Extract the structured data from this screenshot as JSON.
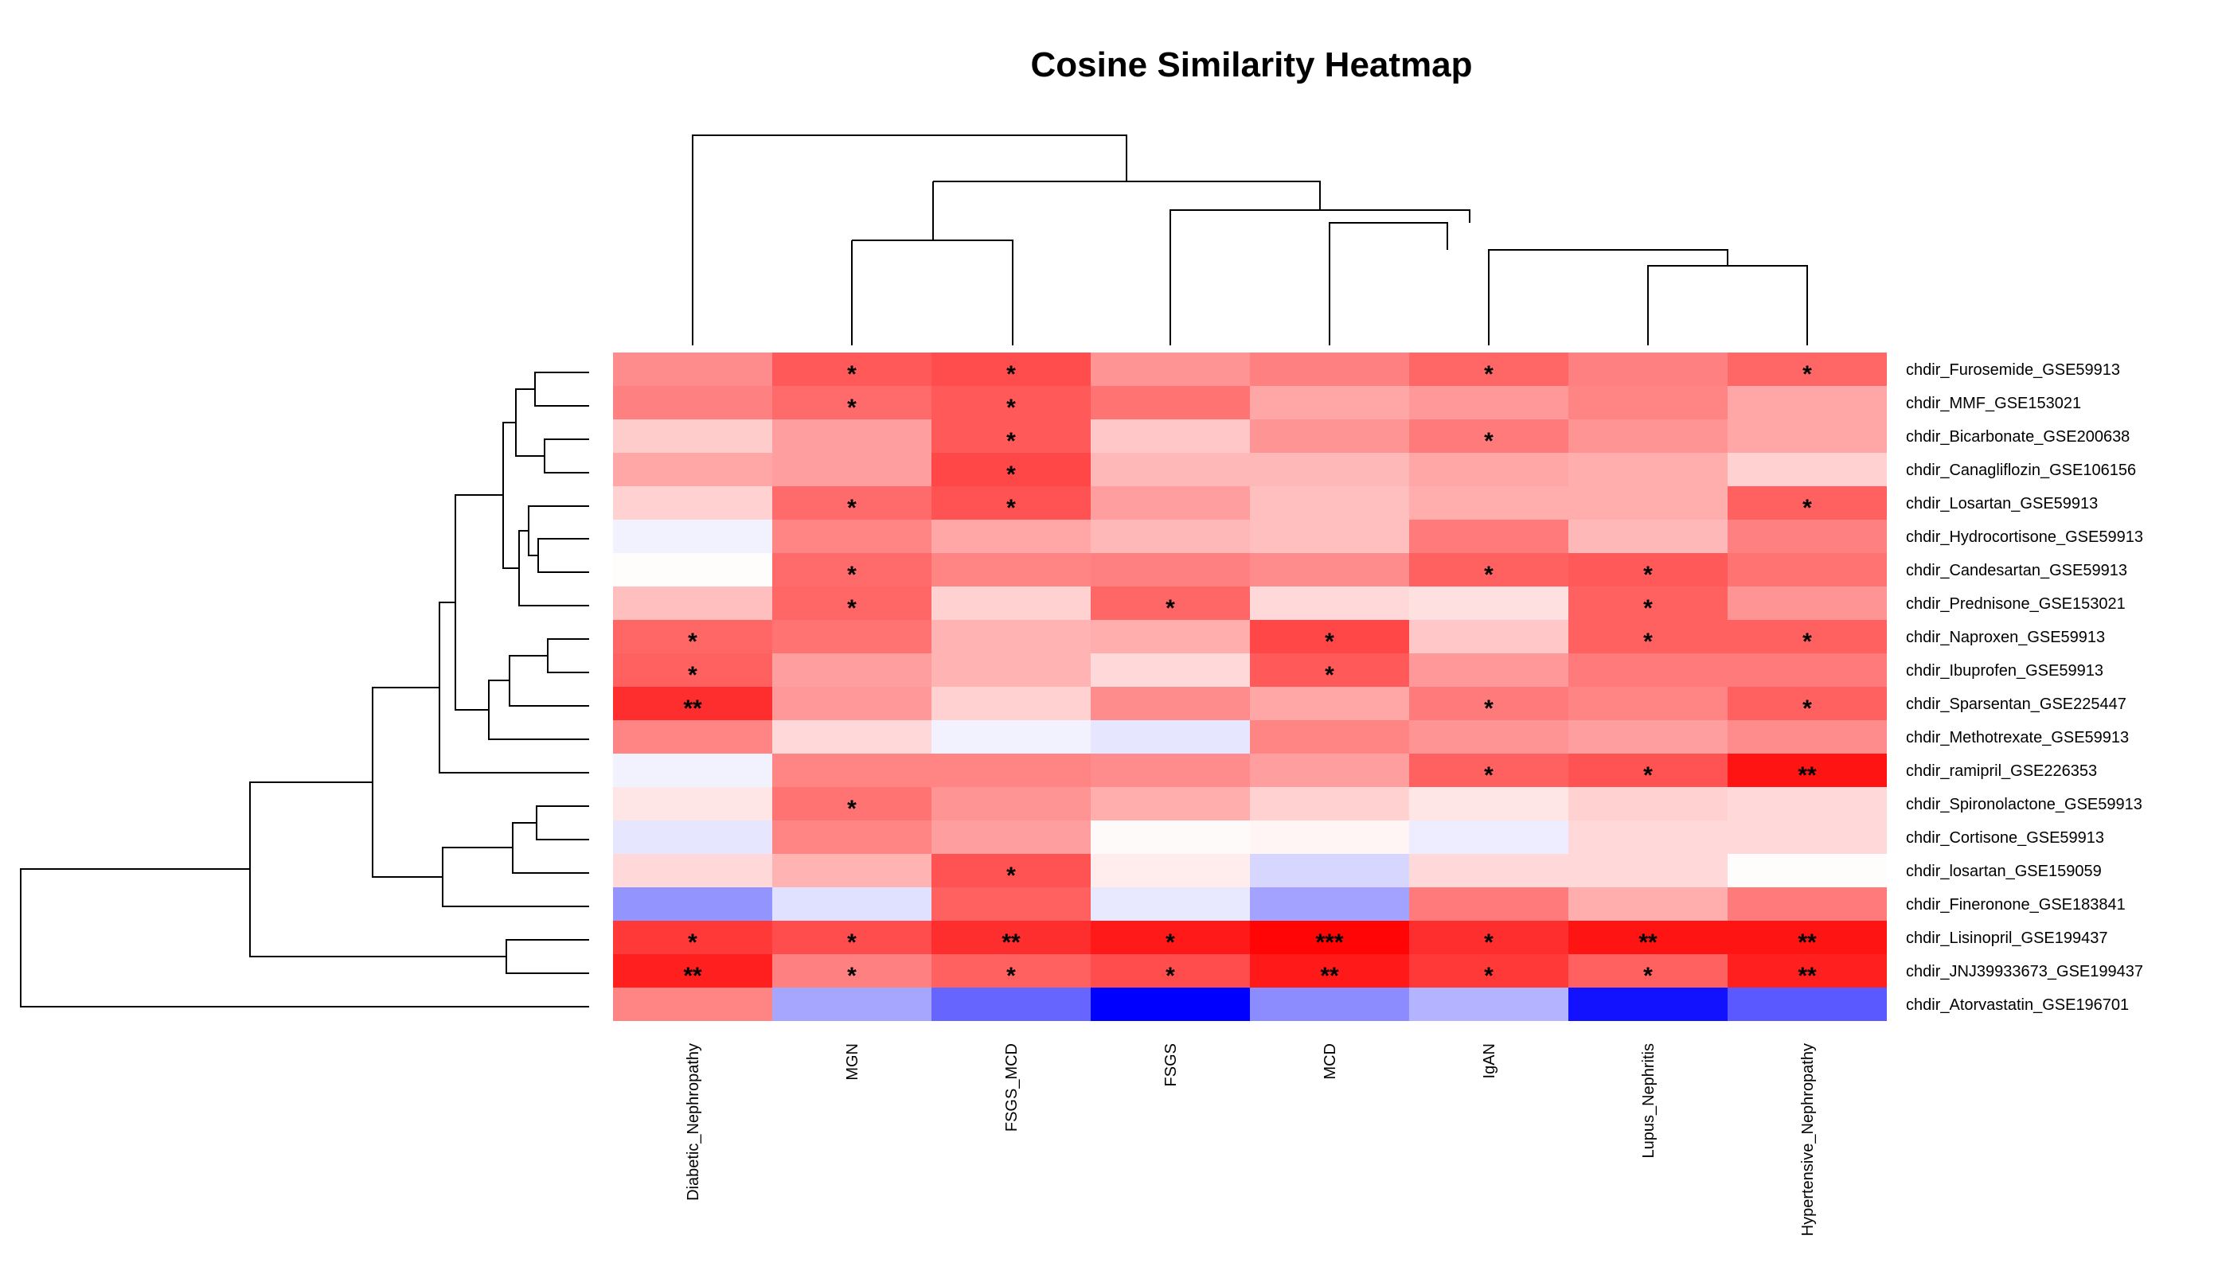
{
  "chart_data": {
    "type": "heatmap",
    "title": "Cosine Similarity Heatmap",
    "rows": [
      "chdir_Furosemide_GSE59913",
      "chdir_MMF_GSE153021",
      "chdir_Bicarbonate_GSE200638",
      "chdir_Canagliflozin_GSE106156",
      "chdir_Losartan_GSE59913",
      "chdir_Hydrocortisone_GSE59913",
      "chdir_Candesartan_GSE59913",
      "chdir_Prednisone_GSE153021",
      "chdir_Naproxen_GSE59913",
      "chdir_Ibuprofen_GSE59913",
      "chdir_Sparsentan_GSE225447",
      "chdir_Methotrexate_GSE59913",
      "chdir_ramipril_GSE226353",
      "chdir_Spironolactone_GSE59913",
      "chdir_Cortisone_GSE59913",
      "chdir_losartan_GSE159059",
      "chdir_Fineronone_GSE183841",
      "chdir_Lisinopril_GSE199437",
      "chdir_JNJ39933673_GSE199437",
      "chdir_Atorvastatin_GSE196701"
    ],
    "columns": [
      "Diabetic_Nephropathy",
      "MGN",
      "FSGS_MCD",
      "FSGS",
      "MCD",
      "IgAN",
      "Lupus_Nephritis",
      "Hypertensive_Nephropathy"
    ],
    "values": [
      [
        0.45,
        0.65,
        0.7,
        0.42,
        0.5,
        0.6,
        0.5,
        0.6
      ],
      [
        0.5,
        0.58,
        0.65,
        0.55,
        0.35,
        0.4,
        0.48,
        0.35
      ],
      [
        0.2,
        0.38,
        0.65,
        0.22,
        0.42,
        0.52,
        0.42,
        0.35
      ],
      [
        0.35,
        0.38,
        0.72,
        0.28,
        0.28,
        0.35,
        0.32,
        0.18
      ],
      [
        0.18,
        0.58,
        0.68,
        0.38,
        0.25,
        0.32,
        0.32,
        0.62
      ],
      [
        -0.05,
        0.48,
        0.35,
        0.28,
        0.25,
        0.52,
        0.28,
        0.5
      ],
      [
        0.01,
        0.58,
        0.48,
        0.5,
        0.45,
        0.62,
        0.65,
        0.55
      ],
      [
        0.25,
        0.6,
        0.18,
        0.6,
        0.15,
        0.12,
        0.62,
        0.42
      ],
      [
        0.6,
        0.55,
        0.3,
        0.32,
        0.72,
        0.22,
        0.62,
        0.62
      ],
      [
        0.62,
        0.38,
        0.3,
        0.15,
        0.65,
        0.4,
        0.52,
        0.52
      ],
      [
        0.82,
        0.4,
        0.18,
        0.45,
        0.35,
        0.52,
        0.48,
        0.62
      ],
      [
        0.48,
        0.15,
        -0.05,
        -0.1,
        0.48,
        0.42,
        0.38,
        0.45
      ],
      [
        -0.05,
        0.48,
        0.48,
        0.45,
        0.38,
        0.62,
        0.68,
        0.92
      ],
      [
        0.1,
        0.55,
        0.42,
        0.32,
        0.18,
        0.1,
        0.18,
        0.15
      ],
      [
        -0.1,
        0.48,
        0.38,
        0.02,
        0.04,
        -0.07,
        0.15,
        0.15
      ],
      [
        0.15,
        0.3,
        0.68,
        0.07,
        -0.16,
        0.15,
        0.15,
        0.01
      ],
      [
        -0.42,
        -0.12,
        0.62,
        -0.09,
        -0.36,
        0.52,
        0.32,
        0.52
      ],
      [
        0.78,
        0.7,
        0.82,
        0.9,
        0.98,
        0.82,
        0.92,
        0.92
      ],
      [
        0.88,
        0.5,
        0.62,
        0.7,
        0.9,
        0.78,
        0.62,
        0.88
      ],
      [
        0.48,
        -0.35,
        -0.6,
        -1.0,
        -0.45,
        -0.3,
        -0.93,
        -0.65
      ]
    ],
    "significance": [
      [
        "",
        "*",
        "*",
        "",
        "",
        "*",
        "",
        "*"
      ],
      [
        "",
        "*",
        "*",
        "",
        "",
        "",
        "",
        ""
      ],
      [
        "",
        "",
        "*",
        "",
        "",
        "*",
        "",
        ""
      ],
      [
        "",
        "",
        "*",
        "",
        "",
        "",
        "",
        ""
      ],
      [
        "",
        "*",
        "*",
        "",
        "",
        "",
        "",
        "*"
      ],
      [
        "",
        "",
        "",
        "",
        "",
        "",
        "",
        ""
      ],
      [
        "",
        "*",
        "",
        "",
        "",
        "*",
        "*",
        ""
      ],
      [
        "",
        "*",
        "",
        "*",
        "",
        "",
        "*",
        ""
      ],
      [
        "*",
        "",
        "",
        "",
        "*",
        "",
        "*",
        "*"
      ],
      [
        "*",
        "",
        "",
        "",
        "*",
        "",
        "",
        ""
      ],
      [
        "**",
        "",
        "",
        "",
        "",
        "*",
        "",
        "*"
      ],
      [
        "",
        "",
        "",
        "",
        "",
        "",
        "",
        ""
      ],
      [
        "",
        "",
        "",
        "",
        "",
        "*",
        "*",
        "**"
      ],
      [
        "",
        "*",
        "",
        "",
        "",
        "",
        "",
        ""
      ],
      [
        "",
        "",
        "",
        "",
        "",
        "",
        "",
        ""
      ],
      [
        "",
        "",
        "*",
        "",
        "",
        "",
        "",
        ""
      ],
      [
        "",
        "",
        "",
        "",
        "",
        "",
        "",
        ""
      ],
      [
        "*",
        "*",
        "**",
        "*",
        "***",
        "*",
        "**",
        "**"
      ],
      [
        "**",
        "*",
        "*",
        "*",
        "**",
        "*",
        "*",
        "**"
      ],
      [
        "",
        "",
        "",
        "",
        "",
        "",
        "",
        ""
      ]
    ],
    "color_scale": {
      "low": "#0000ff",
      "mid": "#ffffff",
      "high": "#ff0000",
      "min": -1,
      "max": 1
    },
    "legend": false
  }
}
